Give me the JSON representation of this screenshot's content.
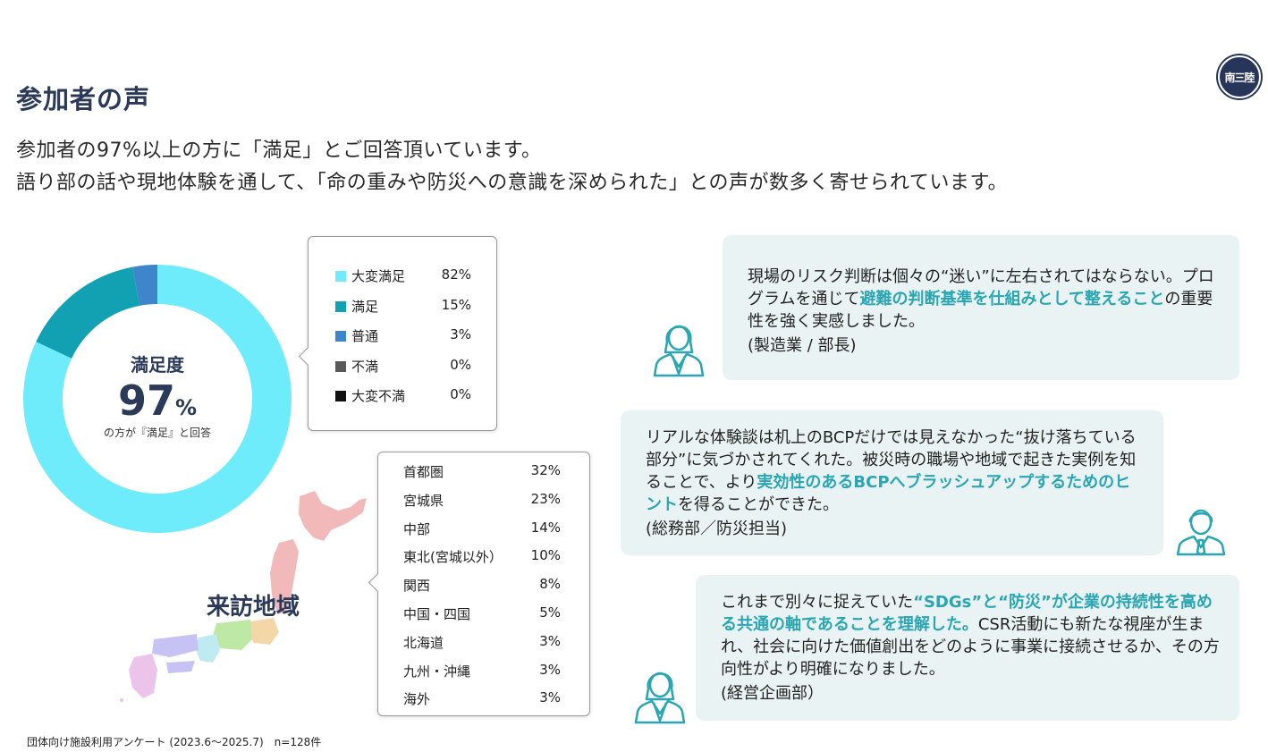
{
  "header": {
    "title": "参加者の声",
    "lead1": "参加者の97%以上の方に「満足」とご回答頂いています。",
    "lead2": "語り部の話や現地体験を通して、「命の重みや防災への意識を深められた」との声が数多く寄せられています。",
    "logo_text": "南三陸"
  },
  "satisfaction": {
    "label": "満足度",
    "value": "97",
    "unit": "%",
    "caption": "の方が『満足』と回答"
  },
  "region": {
    "title": "来訪地域"
  },
  "chart_data": [
    {
      "type": "pie",
      "categories": [
        "大変満足",
        "満足",
        "普通",
        "不満",
        "大変不満"
      ],
      "values": [
        82,
        15,
        3,
        0,
        0
      ],
      "labels": [
        "82%",
        "15%",
        "3%",
        "0%",
        "0%"
      ],
      "colors": [
        "#6fecfb",
        "#12a1b2",
        "#3f85cc",
        "#595959",
        "#111111"
      ],
      "legend_position": "right"
    },
    {
      "type": "table",
      "categories": [
        "首都圏",
        "宮城県",
        "中部",
        "東北(宮城以外）",
        "関西",
        "中国・四国",
        "北海道",
        "九州・沖縄",
        "海外"
      ],
      "values": [
        32,
        23,
        14,
        10,
        8,
        5,
        3,
        3,
        3
      ],
      "labels": [
        "32%",
        "23%",
        "14%",
        "10%",
        "8%",
        "5%",
        "3%",
        "3%",
        "3%"
      ]
    }
  ],
  "quotes": [
    {
      "pre": "現場のリスク判断は個々の“迷い”に左右されてはならない。プログラムを通じて",
      "highlight": "避難の判断基準を仕組みとして整えること",
      "post": "の重要性を強く実感しました。",
      "attribution": "(製造業 / 部長)"
    },
    {
      "pre": "リアルな体験談は机上のBCPだけでは見えなかった“抜け落ちている部分”に気づかされてくれた。被災時の職場や地域で起きた実例を知ることで、より",
      "highlight": "実効性のあるBCPへブラッシュアップするためのヒント",
      "post": "を得ることができた。",
      "attribution": "(総務部／防災担当)"
    },
    {
      "pre": "これまで別々に捉えていた",
      "highlight": "“SDGs”と“防災”が企業の持続性を高める共通の軸であることを理解した。",
      "post": "CSR活動にも新たな視座が生まれ、社会に向けた価値創出をどのように事業に接続させるか、その方向性がより明確になりました。",
      "attribution": "(経営企画部）"
    }
  ],
  "footnote": "団体向け施設利用アンケート (2023.6〜2025.7)　n=128件"
}
